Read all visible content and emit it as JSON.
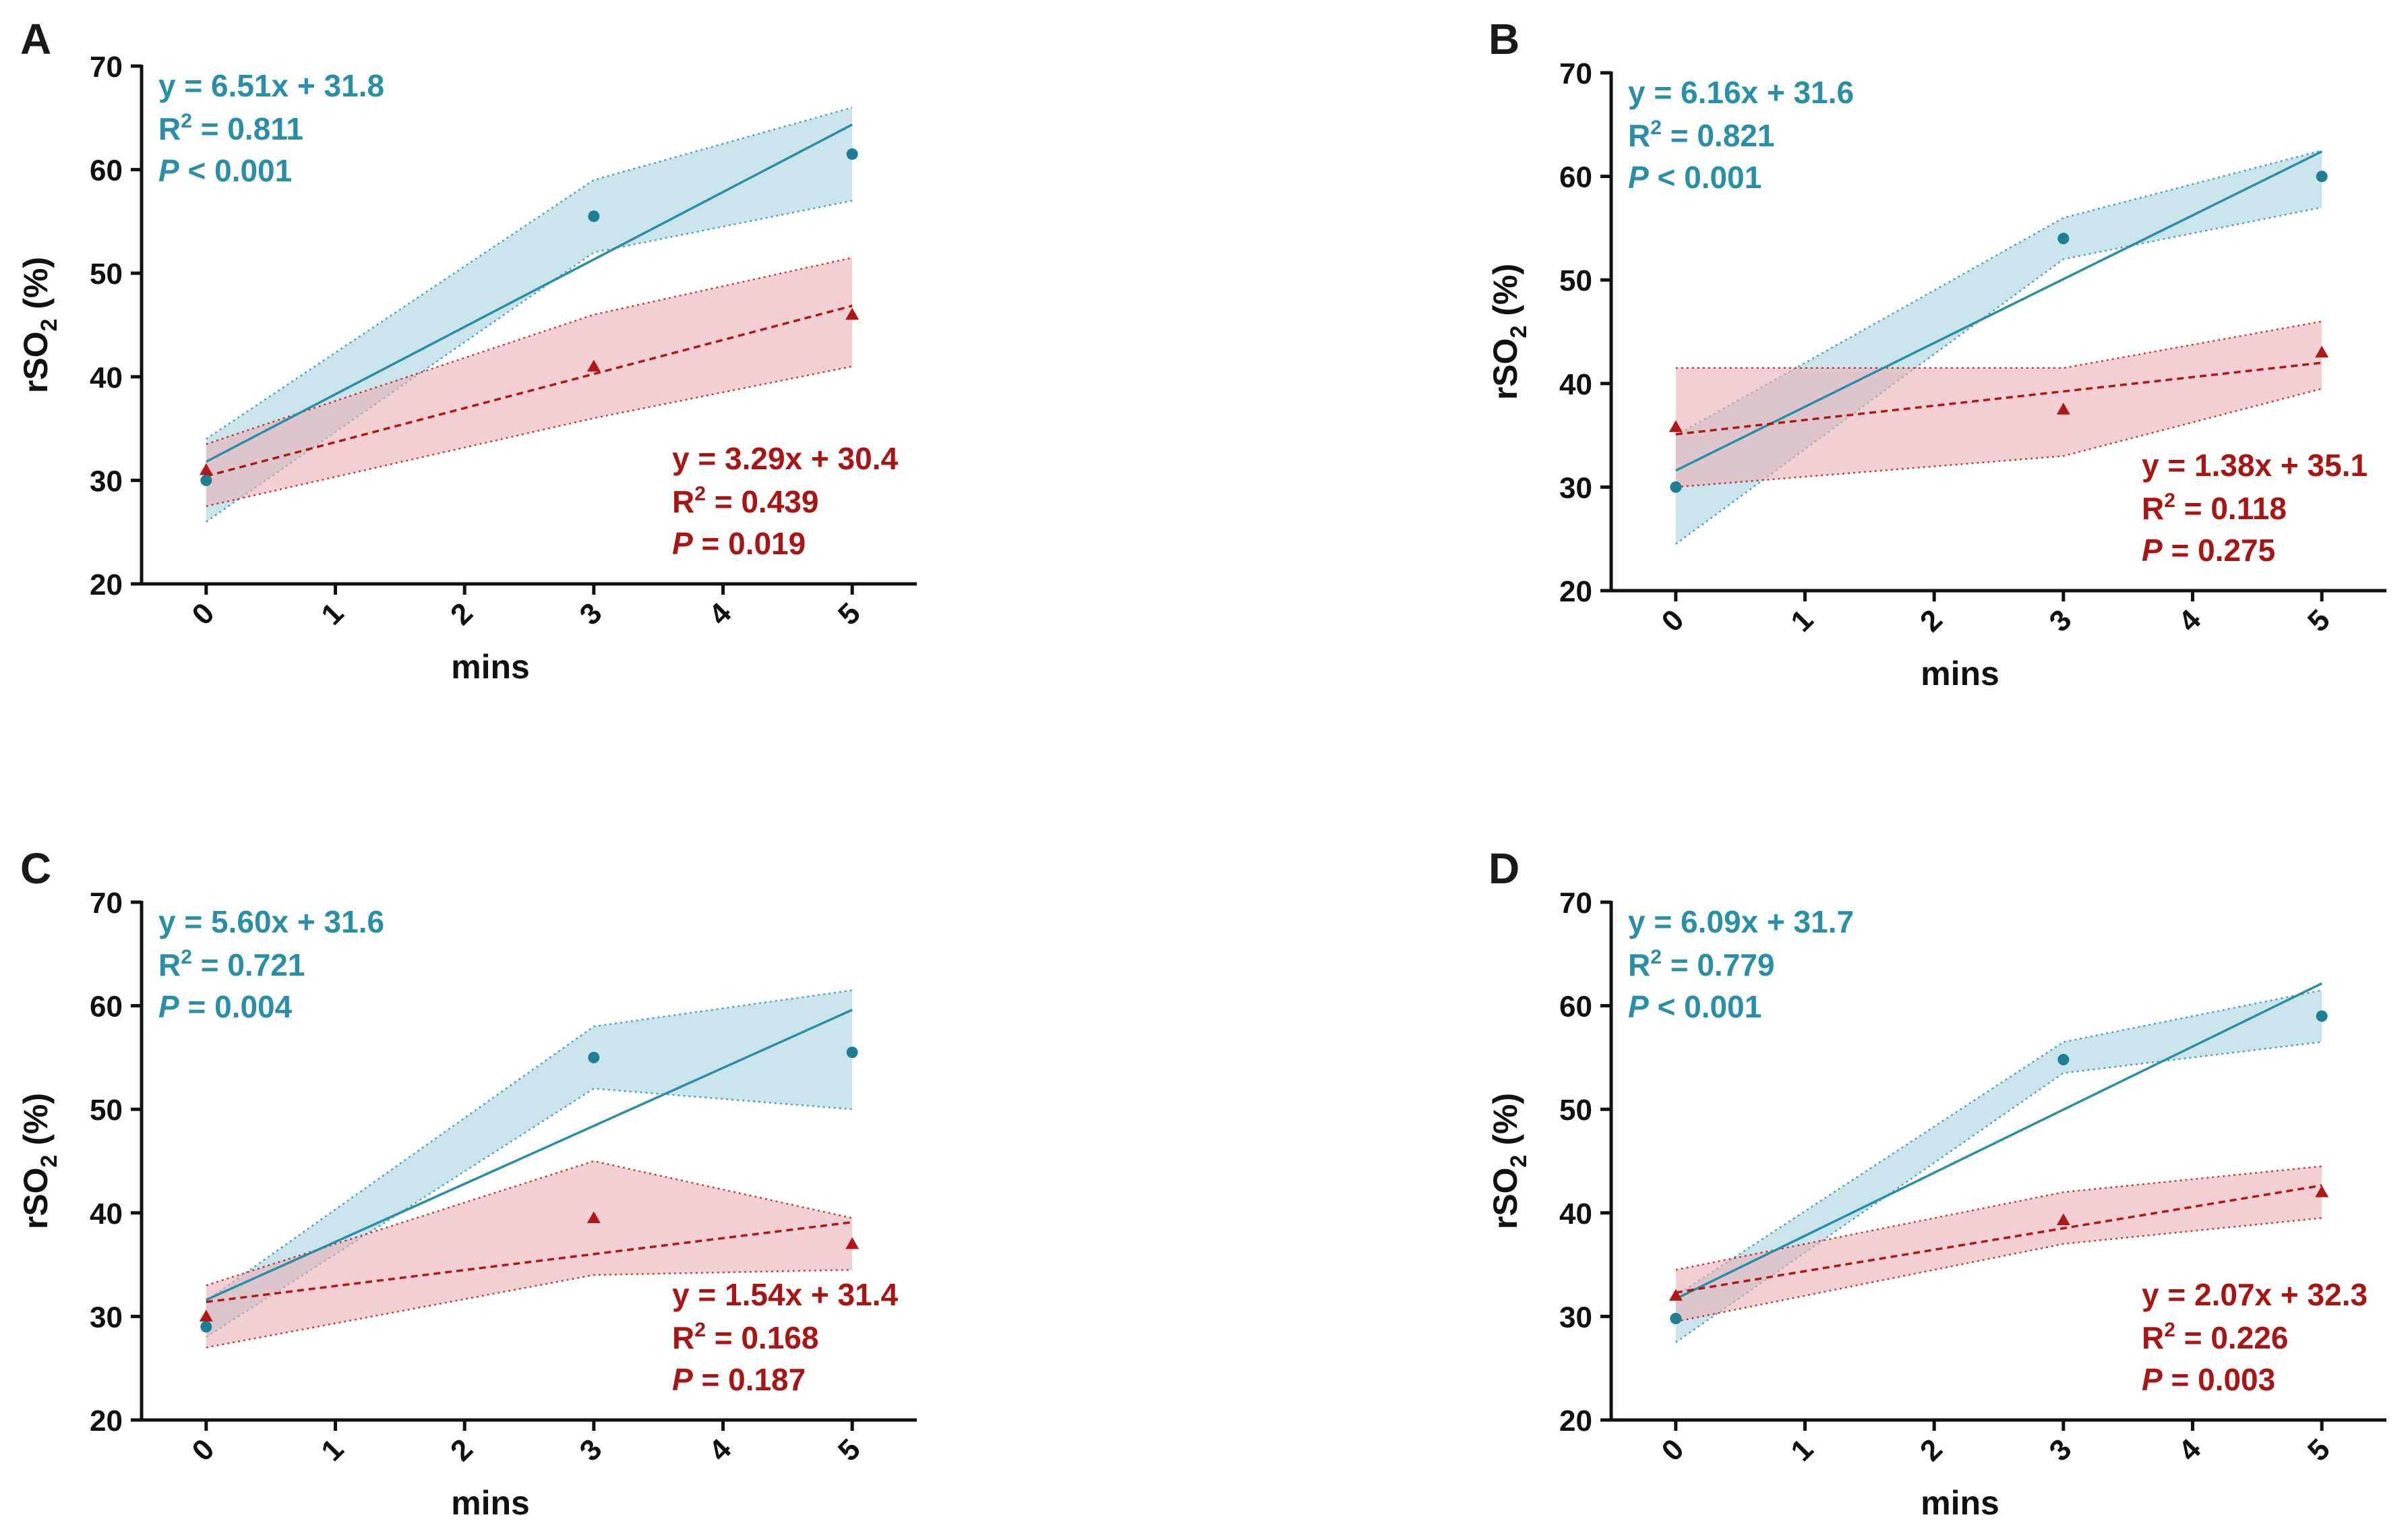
{
  "colors": {
    "blue_line": "#2a8fa6",
    "blue_point": "#1f7e93",
    "blue_band": "#a9d3e1",
    "blue_text": "#2a8fa6",
    "red_line": "#b01818",
    "red_point": "#b01818",
    "red_band": "#eab2b6",
    "red_text": "#a81515"
  },
  "chart_data": [
    {
      "panel": "A",
      "type": "scatter",
      "xlabel": "mins",
      "ylabel_main": "rSO",
      "ylabel_sub": "2",
      "ylabel_tail": " (%)",
      "x_ticks": [
        "0",
        "1",
        "2",
        "3",
        "4",
        "5"
      ],
      "y_ticks": [
        "20",
        "30",
        "40",
        "50",
        "60",
        "70"
      ],
      "xlim": [
        -0.5,
        5.5
      ],
      "ylim": [
        20,
        70
      ],
      "series": [
        {
          "name": "blue",
          "marker": "circle",
          "points": [
            {
              "x": 0,
              "y": 30
            },
            {
              "x": 3,
              "y": 55.5
            },
            {
              "x": 5,
              "y": 61.5
            }
          ],
          "fit": {
            "slope": 6.51,
            "intercept": 31.8,
            "x": [
              0,
              5
            ]
          },
          "band_upper": [
            {
              "x": 0,
              "y": 34
            },
            {
              "x": 3,
              "y": 59
            },
            {
              "x": 5,
              "y": 66
            }
          ],
          "band_lower": [
            {
              "x": 0,
              "y": 26
            },
            {
              "x": 3,
              "y": 52
            },
            {
              "x": 5,
              "y": 57
            }
          ],
          "eq": "y = 6.51x + 31.8",
          "r2_prefix": "R",
          "r2_sup": "2",
          "r2_value": " = 0.811",
          "p_prefix": "P",
          "p_value": " < 0.001"
        },
        {
          "name": "red",
          "marker": "triangle",
          "points": [
            {
              "x": 0,
              "y": 31
            },
            {
              "x": 3,
              "y": 41
            },
            {
              "x": 5,
              "y": 46
            }
          ],
          "fit": {
            "slope": 3.29,
            "intercept": 30.4,
            "x": [
              0,
              5
            ]
          },
          "band_upper": [
            {
              "x": 0,
              "y": 33.5
            },
            {
              "x": 3,
              "y": 46
            },
            {
              "x": 5,
              "y": 51.5
            }
          ],
          "band_lower": [
            {
              "x": 0,
              "y": 27.5
            },
            {
              "x": 3,
              "y": 36
            },
            {
              "x": 5,
              "y": 41
            }
          ],
          "eq": "y = 3.29x + 30.4",
          "r2_prefix": "R",
          "r2_sup": "2",
          "r2_value": " = 0.439",
          "p_prefix": "P",
          "p_value": " = 0.019"
        }
      ]
    },
    {
      "panel": "B",
      "type": "scatter",
      "xlabel": "mins",
      "ylabel_main": "rSO",
      "ylabel_sub": "2",
      "ylabel_tail": " (%)",
      "x_ticks": [
        "0",
        "1",
        "2",
        "3",
        "4",
        "5"
      ],
      "y_ticks": [
        "20",
        "30",
        "40",
        "50",
        "60",
        "70"
      ],
      "xlim": [
        -0.5,
        5.5
      ],
      "ylim": [
        20,
        70
      ],
      "series": [
        {
          "name": "blue",
          "marker": "circle",
          "points": [
            {
              "x": 0,
              "y": 30
            },
            {
              "x": 3,
              "y": 54
            },
            {
              "x": 5,
              "y": 60
            }
          ],
          "fit": {
            "slope": 6.16,
            "intercept": 31.6,
            "x": [
              0,
              5
            ]
          },
          "band_upper": [
            {
              "x": 0,
              "y": 35
            },
            {
              "x": 3,
              "y": 56
            },
            {
              "x": 5,
              "y": 62.5
            }
          ],
          "band_lower": [
            {
              "x": 0,
              "y": 24.5
            },
            {
              "x": 3,
              "y": 52
            },
            {
              "x": 5,
              "y": 57
            }
          ],
          "eq": "y = 6.16x + 31.6",
          "r2_prefix": "R",
          "r2_sup": "2",
          "r2_value": " = 0.821",
          "p_prefix": "P",
          "p_value": " < 0.001"
        },
        {
          "name": "red",
          "marker": "triangle",
          "points": [
            {
              "x": 0,
              "y": 35.8
            },
            {
              "x": 3,
              "y": 37.5
            },
            {
              "x": 5,
              "y": 43
            }
          ],
          "fit": {
            "slope": 1.38,
            "intercept": 35.1,
            "x": [
              0,
              5
            ]
          },
          "band_upper": [
            {
              "x": 0,
              "y": 41.5
            },
            {
              "x": 3,
              "y": 41.5
            },
            {
              "x": 5,
              "y": 46
            }
          ],
          "band_lower": [
            {
              "x": 0,
              "y": 30
            },
            {
              "x": 3,
              "y": 33
            },
            {
              "x": 5,
              "y": 39.5
            }
          ],
          "eq": "y = 1.38x + 35.1",
          "r2_prefix": "R",
          "r2_sup": "2",
          "r2_value": " = 0.118",
          "p_prefix": "P",
          "p_value": " = 0.275"
        }
      ]
    },
    {
      "panel": "C",
      "type": "scatter",
      "xlabel": "mins",
      "ylabel_main": "rSO",
      "ylabel_sub": "2",
      "ylabel_tail": " (%)",
      "x_ticks": [
        "0",
        "1",
        "2",
        "3",
        "4",
        "5"
      ],
      "y_ticks": [
        "20",
        "30",
        "40",
        "50",
        "60",
        "70"
      ],
      "xlim": [
        -0.5,
        5.5
      ],
      "ylim": [
        20,
        70
      ],
      "series": [
        {
          "name": "blue",
          "marker": "circle",
          "points": [
            {
              "x": 0,
              "y": 29
            },
            {
              "x": 3,
              "y": 55
            },
            {
              "x": 5,
              "y": 55.5
            }
          ],
          "fit": {
            "slope": 5.6,
            "intercept": 31.6,
            "x": [
              0,
              5
            ]
          },
          "band_upper": [
            {
              "x": 0,
              "y": 31.5
            },
            {
              "x": 3,
              "y": 58
            },
            {
              "x": 5,
              "y": 61.5
            }
          ],
          "band_lower": [
            {
              "x": 0,
              "y": 28
            },
            {
              "x": 3,
              "y": 52
            },
            {
              "x": 5,
              "y": 50
            }
          ],
          "eq": "y = 5.60x + 31.6",
          "r2_prefix": "R",
          "r2_sup": "2",
          "r2_value": " = 0.721",
          "p_prefix": "P",
          "p_value": " = 0.004"
        },
        {
          "name": "red",
          "marker": "triangle",
          "points": [
            {
              "x": 0,
              "y": 30
            },
            {
              "x": 3,
              "y": 39.5
            },
            {
              "x": 5,
              "y": 37
            }
          ],
          "fit": {
            "slope": 1.54,
            "intercept": 31.4,
            "x": [
              0,
              5
            ]
          },
          "band_upper": [
            {
              "x": 0,
              "y": 33
            },
            {
              "x": 3,
              "y": 45
            },
            {
              "x": 5,
              "y": 39.5
            }
          ],
          "band_lower": [
            {
              "x": 0,
              "y": 27
            },
            {
              "x": 3,
              "y": 34
            },
            {
              "x": 5,
              "y": 34.5
            }
          ],
          "eq": "y = 1.54x + 31.4",
          "r2_prefix": "R",
          "r2_sup": "2",
          "r2_value": " = 0.168",
          "p_prefix": "P",
          "p_value": " = 0.187"
        }
      ]
    },
    {
      "panel": "D",
      "type": "scatter",
      "xlabel": "mins",
      "ylabel_main": "rSO",
      "ylabel_sub": "2",
      "ylabel_tail": " (%)",
      "x_ticks": [
        "0",
        "1",
        "2",
        "3",
        "4",
        "5"
      ],
      "y_ticks": [
        "20",
        "30",
        "40",
        "50",
        "60",
        "70"
      ],
      "xlim": [
        -0.5,
        5.5
      ],
      "ylim": [
        20,
        70
      ],
      "series": [
        {
          "name": "blue",
          "marker": "circle",
          "points": [
            {
              "x": 0,
              "y": 29.8
            },
            {
              "x": 3,
              "y": 54.8
            },
            {
              "x": 5,
              "y": 59
            }
          ],
          "fit": {
            "slope": 6.09,
            "intercept": 31.7,
            "x": [
              0,
              5
            ]
          },
          "band_upper": [
            {
              "x": 0,
              "y": 32
            },
            {
              "x": 3,
              "y": 56.5
            },
            {
              "x": 5,
              "y": 61.5
            }
          ],
          "band_lower": [
            {
              "x": 0,
              "y": 27.5
            },
            {
              "x": 3,
              "y": 53.5
            },
            {
              "x": 5,
              "y": 56.5
            }
          ],
          "eq": "y = 6.09x + 31.7",
          "r2_prefix": "R",
          "r2_sup": "2",
          "r2_value": " = 0.779",
          "p_prefix": "P",
          "p_value": " < 0.001"
        },
        {
          "name": "red",
          "marker": "triangle",
          "points": [
            {
              "x": 0,
              "y": 32
            },
            {
              "x": 3,
              "y": 39.3
            },
            {
              "x": 5,
              "y": 42
            }
          ],
          "fit": {
            "slope": 2.07,
            "intercept": 32.3,
            "x": [
              0,
              5
            ]
          },
          "band_upper": [
            {
              "x": 0,
              "y": 34.5
            },
            {
              "x": 3,
              "y": 42
            },
            {
              "x": 5,
              "y": 44.5
            }
          ],
          "band_lower": [
            {
              "x": 0,
              "y": 29.5
            },
            {
              "x": 3,
              "y": 37
            },
            {
              "x": 5,
              "y": 39.5
            }
          ],
          "eq": "y = 2.07x + 32.3",
          "r2_prefix": "R",
          "r2_sup": "2",
          "r2_value": " = 0.226",
          "p_prefix": "P",
          "p_value": " = 0.003"
        }
      ]
    }
  ]
}
